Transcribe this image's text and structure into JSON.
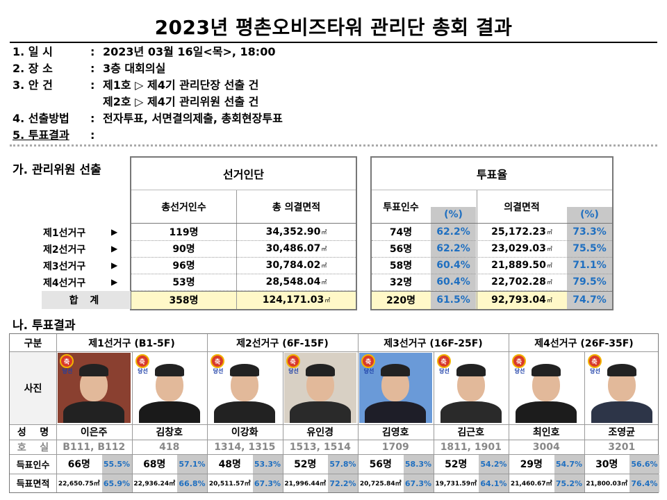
{
  "title": "2023년 평촌오비즈타워 관리단 총회 결과",
  "info": [
    {
      "key": "1. 일    시",
      "value": "2023년 03월 16일<목>, 18:00"
    },
    {
      "key": "2. 장    소",
      "value": "3층 대회의실"
    },
    {
      "key": "3. 안    건",
      "value": "제1호 ▷ 제4기 관리단장 선출 건"
    },
    {
      "key": "",
      "value": "제2호 ▷ 제4기 관리위원 선출 건"
    },
    {
      "key": "4. 선출방법",
      "value": "전자투표, 서면결의제출, 총회현장투표"
    },
    {
      "key": "5. 투표결과",
      "value": ""
    }
  ],
  "colon": ":",
  "section_a": "가. 관리위원 선출",
  "section_b": "나. 투표결과",
  "summary": {
    "group_left": "선거인단",
    "group_right": "투표율",
    "headers": [
      "총선거인수",
      "총 의결면적",
      "투표인수",
      "(%)",
      "의결면적",
      "(%)"
    ],
    "area_unit": "㎡",
    "rows": [
      {
        "label": "제1선거구",
        "arrow": "▶",
        "voters": "119명",
        "area": "34,352.90",
        "turnout": "74명",
        "turnout_pct": "62.2%",
        "voted_area": "25,172.23",
        "area_pct": "73.3%"
      },
      {
        "label": "제2선거구",
        "arrow": "▶",
        "voters": "90명",
        "area": "30,486.07",
        "turnout": "56명",
        "turnout_pct": "62.2%",
        "voted_area": "23,029.03",
        "area_pct": "75.5%"
      },
      {
        "label": "제3선거구",
        "arrow": "▶",
        "voters": "96명",
        "area": "30,784.02",
        "turnout": "58명",
        "turnout_pct": "60.4%",
        "voted_area": "21,889.50",
        "area_pct": "71.1%"
      },
      {
        "label": "제4선거구",
        "arrow": "▶",
        "voters": "53명",
        "area": "28,548.04",
        "turnout": "32명",
        "turnout_pct": "60.4%",
        "voted_area": "22,702.28",
        "area_pct": "79.5%"
      }
    ],
    "total": {
      "label": "합  계",
      "voters": "358명",
      "area": "124,171.03",
      "turnout": "220명",
      "turnout_pct": "61.5%",
      "voted_area": "92,793.04",
      "area_pct": "74.7%"
    }
  },
  "results": {
    "corner": "구분",
    "row_labels": [
      "사진",
      "성    명",
      "호    실",
      "득표인수",
      "득표면적"
    ],
    "districts": [
      "제1선거구 (B1-5F)",
      "제2선거구 (6F-15F)",
      "제3선거구 (16F-25F)",
      "제4선거구 (26F-35F)"
    ],
    "badge_top": "축",
    "badge_bottom": "당선",
    "candidates": [
      {
        "name": "이은주",
        "rooms": "B111, B112",
        "votes": "66명",
        "votes_pct": "55.5%",
        "area": "22,650.75㎡",
        "area_pct": "65.9%",
        "photo_bg": "#8a4030",
        "shirt": "#222222"
      },
      {
        "name": "김창호",
        "rooms": "418",
        "votes": "68명",
        "votes_pct": "57.1%",
        "area": "22,936.24㎡",
        "area_pct": "66.8%",
        "photo_bg": "#ffffff",
        "shirt": "#1a1a1a"
      },
      {
        "name": "이강화",
        "rooms": "1314, 1315",
        "votes": "48명",
        "votes_pct": "53.3%",
        "area": "20,511.57㎡",
        "area_pct": "67.3%",
        "photo_bg": "#ffffff",
        "shirt": "#222222"
      },
      {
        "name": "유인경",
        "rooms": "1513, 1514",
        "votes": "52명",
        "votes_pct": "57.8%",
        "area": "21,996.44㎡",
        "area_pct": "72.2%",
        "photo_bg": "#d8d0c4",
        "shirt": "#2a2a2a"
      },
      {
        "name": "김영호",
        "rooms": "1709",
        "votes": "56명",
        "votes_pct": "58.3%",
        "area": "20,725.84㎡",
        "area_pct": "67.3%",
        "photo_bg": "#6a9ad8",
        "shirt": "#1e1e28"
      },
      {
        "name": "김근호",
        "rooms": "1811, 1901",
        "votes": "52명",
        "votes_pct": "54.2%",
        "area": "19,731.59㎡",
        "area_pct": "64.1%",
        "photo_bg": "#ffffff",
        "shirt": "#2a2a2a"
      },
      {
        "name": "최인호",
        "rooms": "3004",
        "votes": "29명",
        "votes_pct": "54.7%",
        "area": "21,460.67㎡",
        "area_pct": "75.2%",
        "photo_bg": "#ffffff",
        "shirt": "#1c1c1c"
      },
      {
        "name": "조영균",
        "rooms": "3201",
        "votes": "30명",
        "votes_pct": "56.6%",
        "area": "21,800.03㎡",
        "area_pct": "76.4%",
        "photo_bg": "#ffffff",
        "shirt": "#2d3548"
      }
    ]
  }
}
